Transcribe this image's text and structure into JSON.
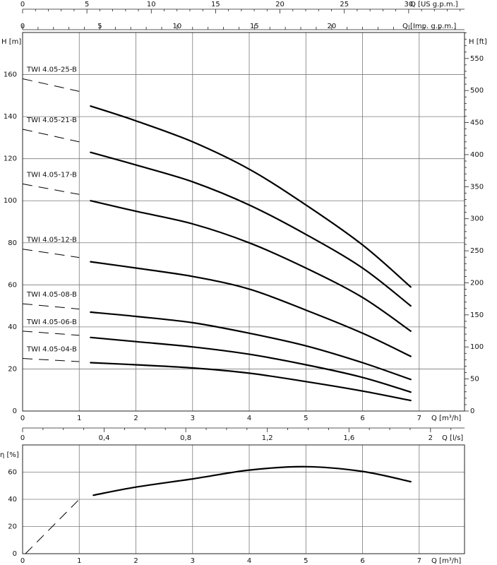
{
  "chart_data": [
    {
      "type": "line",
      "id": "head",
      "axes": {
        "x_m3h": {
          "label": "Q [m³/h]",
          "range": [
            0,
            7.8
          ],
          "ticks": [
            0,
            1,
            2,
            3,
            4,
            5,
            6,
            7
          ]
        },
        "x_lps": {
          "label": "Q [l/s]",
          "ticks": [
            {
              "v": 0,
              "t": "0"
            },
            {
              "v": 0.4,
              "t": "0,4"
            },
            {
              "v": 0.8,
              "t": "0,8"
            },
            {
              "v": 1.2,
              "t": "1,2"
            },
            {
              "v": 1.6,
              "t": "1,6"
            },
            {
              "v": 2,
              "t": "2"
            }
          ]
        },
        "x_usgpm": {
          "label": "Q [US g.p.m.]",
          "ticks": [
            0,
            5,
            10,
            15,
            20,
            25,
            30
          ]
        },
        "x_impgpm": {
          "label": "Q [Imp. g.p.m.]",
          "ticks": [
            0,
            5,
            10,
            15,
            20
          ]
        },
        "y_m": {
          "label": "H [m]",
          "range": [
            0,
            180
          ],
          "ticks": [
            0,
            20,
            40,
            60,
            80,
            100,
            120,
            140,
            160
          ]
        },
        "y_ft": {
          "label": "H [ft]",
          "ticks": [
            0,
            50,
            100,
            150,
            200,
            250,
            300,
            350,
            400,
            450,
            500,
            550
          ]
        }
      },
      "grid": true,
      "series": [
        {
          "name": "TWI 4.05-25-B",
          "dashed": [
            [
              0,
              158
            ],
            [
              1,
              152
            ]
          ],
          "points": [
            [
              1.2,
              145
            ],
            [
              2,
              138
            ],
            [
              3,
              128
            ],
            [
              4,
              115
            ],
            [
              5,
              98
            ],
            [
              6,
              79
            ],
            [
              6.85,
              59
            ]
          ]
        },
        {
          "name": "TWI 4.05-21-B",
          "dashed": [
            [
              0,
              134
            ],
            [
              1,
              128
            ]
          ],
          "points": [
            [
              1.2,
              123
            ],
            [
              2,
              117
            ],
            [
              3,
              109
            ],
            [
              4,
              98
            ],
            [
              5,
              84
            ],
            [
              6,
              68
            ],
            [
              6.85,
              50
            ]
          ]
        },
        {
          "name": "TWI 4.05-17-B",
          "dashed": [
            [
              0,
              108
            ],
            [
              1,
              103
            ]
          ],
          "points": [
            [
              1.2,
              100
            ],
            [
              2,
              95
            ],
            [
              3,
              89
            ],
            [
              4,
              80
            ],
            [
              5,
              68
            ],
            [
              6,
              54
            ],
            [
              6.85,
              38
            ]
          ]
        },
        {
          "name": "TWI 4.05-12-B",
          "dashed": [
            [
              0,
              77
            ],
            [
              1,
              73
            ]
          ],
          "points": [
            [
              1.2,
              71
            ],
            [
              2,
              68
            ],
            [
              3,
              64
            ],
            [
              4,
              58
            ],
            [
              5,
              48
            ],
            [
              6,
              37
            ],
            [
              6.85,
              26
            ]
          ]
        },
        {
          "name": "TWI 4.05-08-B",
          "dashed": [
            [
              0,
              51
            ],
            [
              1,
              48.5
            ]
          ],
          "points": [
            [
              1.2,
              47
            ],
            [
              2,
              45
            ],
            [
              3,
              42
            ],
            [
              4,
              37
            ],
            [
              5,
              31
            ],
            [
              6,
              23
            ],
            [
              6.85,
              15
            ]
          ]
        },
        {
          "name": "TWI 4.05-06-B",
          "dashed": [
            [
              0,
              38
            ],
            [
              1,
              36
            ]
          ],
          "points": [
            [
              1.2,
              35
            ],
            [
              2,
              33
            ],
            [
              3,
              30.5
            ],
            [
              4,
              27
            ],
            [
              5,
              22
            ],
            [
              6,
              16
            ],
            [
              6.85,
              9
            ]
          ]
        },
        {
          "name": "TWI 4.05-04-B",
          "dashed": [
            [
              0,
              25
            ],
            [
              1,
              23.5
            ]
          ],
          "points": [
            [
              1.2,
              23
            ],
            [
              2,
              22
            ],
            [
              3,
              20.5
            ],
            [
              4,
              18
            ],
            [
              5,
              14
            ],
            [
              6,
              9.5
            ],
            [
              6.85,
              5
            ]
          ]
        }
      ]
    },
    {
      "type": "line",
      "id": "efficiency",
      "axes": {
        "x_m3h": {
          "label": "Q [m³/h]",
          "range": [
            0,
            7.8
          ],
          "ticks": [
            0,
            1,
            2,
            3,
            4,
            5,
            6,
            7
          ]
        },
        "y_pct": {
          "label": "η [%]",
          "range": [
            0,
            80
          ],
          "ticks": [
            0,
            20,
            40,
            60
          ]
        }
      },
      "grid": true,
      "series": [
        {
          "name": "",
          "dashed": [
            [
              0.05,
              0
            ],
            [
              1,
              40
            ]
          ],
          "points": [
            [
              1.25,
              43
            ],
            [
              2,
              49
            ],
            [
              3,
              55
            ],
            [
              4,
              61.5
            ],
            [
              5,
              64
            ],
            [
              6,
              60.5
            ],
            [
              6.85,
              53
            ]
          ]
        }
      ]
    }
  ]
}
